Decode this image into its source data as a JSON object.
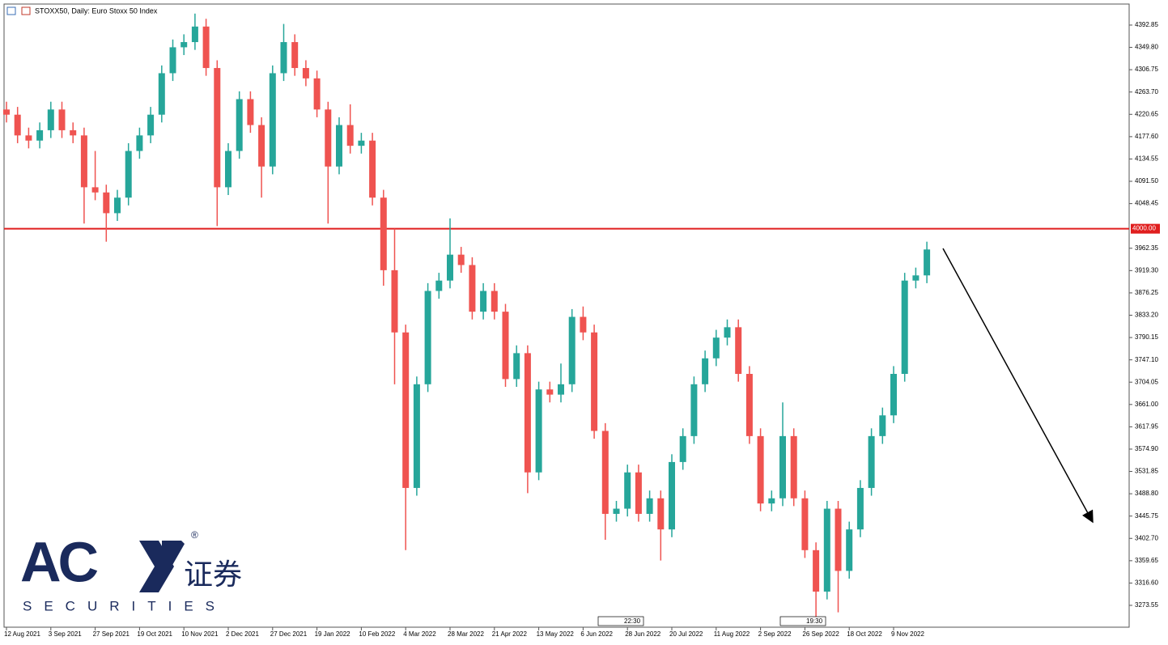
{
  "chart_data": {
    "type": "candlestick",
    "title": "STOXX50, Daily:  Euro Stoxx 50 Index",
    "categories": [
      "12 Aug 2021",
      null,
      null,
      null,
      "3 Sep 2021",
      null,
      null,
      null,
      "27 Sep 2021",
      null,
      null,
      null,
      "19 Oct 2021",
      null,
      null,
      null,
      "10 Nov 2021",
      null,
      null,
      null,
      "2 Dec 2021",
      null,
      null,
      null,
      "27 Dec 2021",
      null,
      null,
      null,
      "19 Jan 2022",
      null,
      null,
      null,
      "10 Feb 2022",
      null,
      null,
      null,
      "4 Mar 2022",
      null,
      null,
      null,
      "28 Mar 2022",
      null,
      null,
      null,
      "21 Apr 2022",
      null,
      null,
      null,
      "13 May 2022",
      null,
      null,
      null,
      "6 Jun 2022",
      null,
      null,
      null,
      "28 Jun 2022",
      null,
      null,
      null,
      "20 Jul 2022",
      null,
      null,
      null,
      "11 Aug 2022",
      null,
      null,
      null,
      "2 Sep 2022",
      null,
      null,
      null,
      "26 Sep 2022",
      null,
      null,
      null,
      "18 Oct 2022",
      null,
      null,
      null,
      "9 Nov 2022",
      null,
      null,
      null
    ],
    "open": [
      4230,
      4220,
      4180,
      4170,
      4190,
      4230,
      4190,
      4180,
      4080,
      4070,
      4030,
      4060,
      4150,
      4180,
      4220,
      4300,
      4350,
      4360,
      4390,
      4310,
      4080,
      4150,
      4250,
      4200,
      4120,
      4300,
      4360,
      4310,
      4290,
      4230,
      4120,
      4200,
      4160,
      4170,
      4060,
      3920,
      3800,
      3500,
      3700,
      3880,
      3900,
      3950,
      3930,
      3840,
      3880,
      3840,
      3710,
      3760,
      3530,
      3690,
      3680,
      3700,
      3830,
      3800,
      3610,
      3450,
      3460,
      3530,
      3450,
      3480,
      3420,
      3550,
      3600,
      3700,
      3750,
      3790,
      3810,
      3720,
      3600,
      3470,
      3480,
      3600,
      3480,
      3380,
      3300,
      3460,
      3340,
      3420,
      3500,
      3600,
      3640,
      3720,
      3900,
      3910
    ],
    "high": [
      4245,
      4235,
      4195,
      4205,
      4245,
      4245,
      4205,
      4195,
      4150,
      4085,
      4075,
      4165,
      4195,
      4235,
      4315,
      4365,
      4375,
      4415,
      4405,
      4325,
      4165,
      4265,
      4265,
      4215,
      4315,
      4395,
      4375,
      4325,
      4305,
      4245,
      4215,
      4240,
      4185,
      4185,
      4075,
      4000,
      3815,
      3715,
      3895,
      3915,
      4020,
      3965,
      3945,
      3895,
      3895,
      3855,
      3775,
      3775,
      3705,
      3705,
      3740,
      3845,
      3850,
      3815,
      3625,
      3475,
      3545,
      3545,
      3495,
      3495,
      3565,
      3615,
      3715,
      3765,
      3805,
      3825,
      3825,
      3735,
      3615,
      3495,
      3665,
      3615,
      3495,
      3395,
      3475,
      3475,
      3435,
      3515,
      3615,
      3655,
      3735,
      3915,
      3925,
      3975
    ],
    "low": [
      4205,
      4165,
      4155,
      4155,
      4175,
      4175,
      4165,
      4010,
      4055,
      3975,
      4015,
      4045,
      4135,
      4165,
      4205,
      4285,
      4335,
      4345,
      4295,
      4005,
      4065,
      4135,
      4185,
      4060,
      4105,
      4285,
      4295,
      4275,
      4215,
      4010,
      4105,
      4145,
      4145,
      4045,
      3890,
      3700,
      3380,
      3485,
      3685,
      3865,
      3885,
      3915,
      3825,
      3825,
      3825,
      3695,
      3695,
      3490,
      3515,
      3665,
      3665,
      3685,
      3785,
      3595,
      3400,
      3435,
      3445,
      3435,
      3435,
      3360,
      3405,
      3535,
      3585,
      3685,
      3735,
      3775,
      3705,
      3585,
      3455,
      3455,
      3465,
      3465,
      3365,
      3250,
      3285,
      3260,
      3325,
      3405,
      3485,
      3585,
      3625,
      3705,
      3885,
      3895
    ],
    "close": [
      4220,
      4180,
      4170,
      4190,
      4230,
      4190,
      4180,
      4080,
      4070,
      4030,
      4060,
      4150,
      4180,
      4220,
      4300,
      4350,
      4360,
      4390,
      4310,
      4080,
      4150,
      4250,
      4200,
      4120,
      4300,
      4360,
      4310,
      4290,
      4230,
      4120,
      4200,
      4160,
      4170,
      4060,
      3920,
      3800,
      3500,
      3700,
      3880,
      3900,
      3950,
      3930,
      3840,
      3880,
      3840,
      3710,
      3760,
      3530,
      3690,
      3680,
      3700,
      3830,
      3800,
      3610,
      3450,
      3460,
      3530,
      3450,
      3480,
      3420,
      3550,
      3600,
      3700,
      3750,
      3790,
      3810,
      3720,
      3600,
      3470,
      3480,
      3600,
      3480,
      3380,
      3300,
      3460,
      3340,
      3420,
      3500,
      3600,
      3640,
      3720,
      3900,
      3910,
      3960
    ],
    "up_color": "#26a69a",
    "down_color": "#ef5350",
    "ylim": [
      3231.4,
      4433.4
    ],
    "yticks": [
      4392.85,
      {
        "value": 4349.8,
        "label": "4349.80"
      },
      4306.75,
      {
        "value": 4263.7,
        "label": "4263.70"
      },
      4220.65,
      {
        "value": 4177.6,
        "label": "4177.60"
      },
      4134.55,
      {
        "value": 4091.5,
        "label": "4091.50"
      },
      4048.45,
      3962.35,
      {
        "value": 3919.3,
        "label": "3919.30"
      },
      3876.25,
      {
        "value": 3833.2,
        "label": "3833.20"
      },
      3790.15,
      {
        "value": 3747.1,
        "label": "3747.10"
      },
      3704.05,
      {
        "value": 3661,
        "label": "3661.00"
      },
      3617.95,
      {
        "value": 3574.9,
        "label": "3574.90"
      },
      3531.85,
      {
        "value": 3488.8,
        "label": "3488.80"
      },
      3445.75,
      {
        "value": 3402.7,
        "label": "3402.70"
      },
      3359.65,
      {
        "value": 3316.6,
        "label": "3316.60"
      },
      3273.55
    ],
    "hline": {
      "value": 4000,
      "label": "4000.00",
      "color": "#e01e1e"
    },
    "annotations": [
      "22:30",
      "19:30"
    ]
  },
  "logo": {
    "brand": "AC",
    "cn": "证券",
    "sub": "SECURITIES",
    "mark": "®"
  }
}
